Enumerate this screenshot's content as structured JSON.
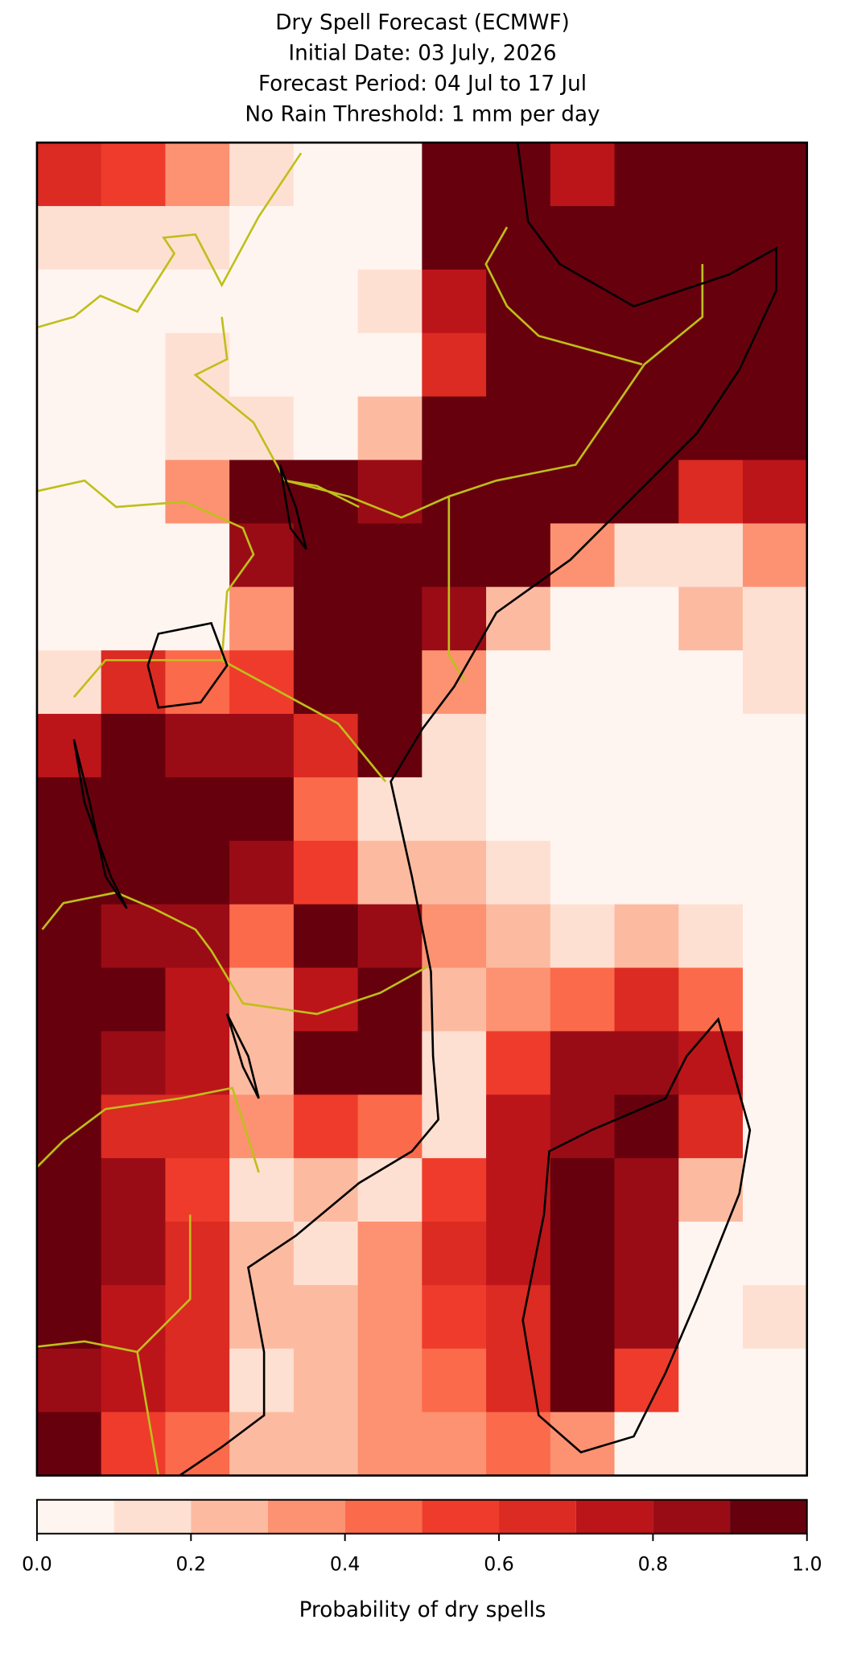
{
  "chart_data": {
    "type": "heatmap",
    "title": [
      "Dry Spell Forecast (ECMWF)",
      "Initial Date: 03 July, 2026",
      "Forecast Period: 04 Jul to 17 Jul",
      "No Rain Threshold: 1 mm per day"
    ],
    "values": [
      [
        0.6,
        0.5,
        0.3,
        0.1,
        0,
        0,
        1,
        0.9,
        0.7,
        0.9,
        1,
        1
      ],
      [
        0.1,
        0.1,
        0.1,
        0,
        0,
        0,
        0.9,
        1,
        1,
        1,
        1,
        1
      ],
      [
        0,
        0,
        0,
        0,
        0,
        0.1,
        0.7,
        0.9,
        1,
        1,
        1,
        1
      ],
      [
        0,
        0,
        0.1,
        0,
        0,
        0,
        0.6,
        1,
        1,
        1,
        1,
        1
      ],
      [
        0,
        0,
        0.1,
        0.1,
        0,
        0.2,
        0.9,
        1,
        1,
        1,
        1,
        0.9
      ],
      [
        0,
        0,
        0.3,
        0.9,
        0.9,
        0.8,
        1,
        1,
        1,
        1,
        0.6,
        0.7
      ],
      [
        0,
        0,
        0,
        0.8,
        1,
        0.9,
        0.9,
        0.9,
        0.3,
        0.1,
        0.1,
        0.3
      ],
      [
        0,
        0,
        0,
        0.3,
        0.9,
        1,
        0.8,
        0.2,
        0,
        0,
        0.2,
        0.1
      ],
      [
        0.1,
        0.6,
        0.4,
        0.5,
        0.9,
        1,
        0.3,
        0,
        0,
        0,
        0,
        0.1
      ],
      [
        0.7,
        0.9,
        0.8,
        0.8,
        0.6,
        0.9,
        0.1,
        0,
        0,
        0,
        0,
        0
      ],
      [
        0.9,
        1,
        0.9,
        0.9,
        0.4,
        0.1,
        0.1,
        0,
        0,
        0,
        0,
        0
      ],
      [
        0.9,
        0.9,
        0.9,
        0.8,
        0.5,
        0.2,
        0.2,
        0.1,
        0,
        0,
        0,
        0
      ],
      [
        0.9,
        0.8,
        0.8,
        0.4,
        0.9,
        0.8,
        0.3,
        0.2,
        0.1,
        0.2,
        0.1,
        0
      ],
      [
        1,
        0.9,
        0.7,
        0.2,
        0.7,
        0.9,
        0.2,
        0.3,
        0.4,
        0.6,
        0.4,
        0
      ],
      [
        0.9,
        0.8,
        0.7,
        0.2,
        0.9,
        0.9,
        0.1,
        0.5,
        0.8,
        0.8,
        0.7,
        0
      ],
      [
        0.9,
        0.6,
        0.6,
        0.3,
        0.5,
        0.4,
        0.1,
        0.7,
        0.8,
        1,
        0.6,
        0
      ],
      [
        1,
        0.8,
        0.5,
        0.1,
        0.2,
        0.1,
        0.5,
        0.7,
        1,
        0.8,
        0.2,
        0
      ],
      [
        0.9,
        0.8,
        0.6,
        0.2,
        0.1,
        0.3,
        0.6,
        0.7,
        1,
        0.8,
        0,
        0
      ],
      [
        1,
        0.7,
        0.6,
        0.2,
        0.2,
        0.3,
        0.5,
        0.6,
        1,
        0.8,
        0,
        0.1
      ],
      [
        0.8,
        0.7,
        0.6,
        0.1,
        0.2,
        0.3,
        0.4,
        0.6,
        0.9,
        0.5,
        0,
        0
      ],
      [
        0.9,
        0.5,
        0.4,
        0.2,
        0.2,
        0.3,
        0.3,
        0.4,
        0.3,
        0,
        0,
        0
      ]
    ],
    "levels": [
      0,
      0.1,
      0.2,
      0.3,
      0.4,
      0.5,
      0.6,
      0.7,
      0.8,
      0.9,
      1
    ],
    "colors": [
      "#fff5f0",
      "#fee0d2",
      "#fcbba1",
      "#fc9272",
      "#fb6a4a",
      "#ef3b2c",
      "#db2b22",
      "#bb151a",
      "#9a0c15",
      "#67000d"
    ],
    "clim": [
      0,
      1
    ],
    "colorbar_ticks": [
      {
        "value": 0,
        "label": "0.0"
      },
      0.2,
      0.4,
      0.6,
      0.8,
      {
        "value": 1,
        "label": "1.0"
      }
    ],
    "colorbar_label": "Probability of dry spells"
  }
}
